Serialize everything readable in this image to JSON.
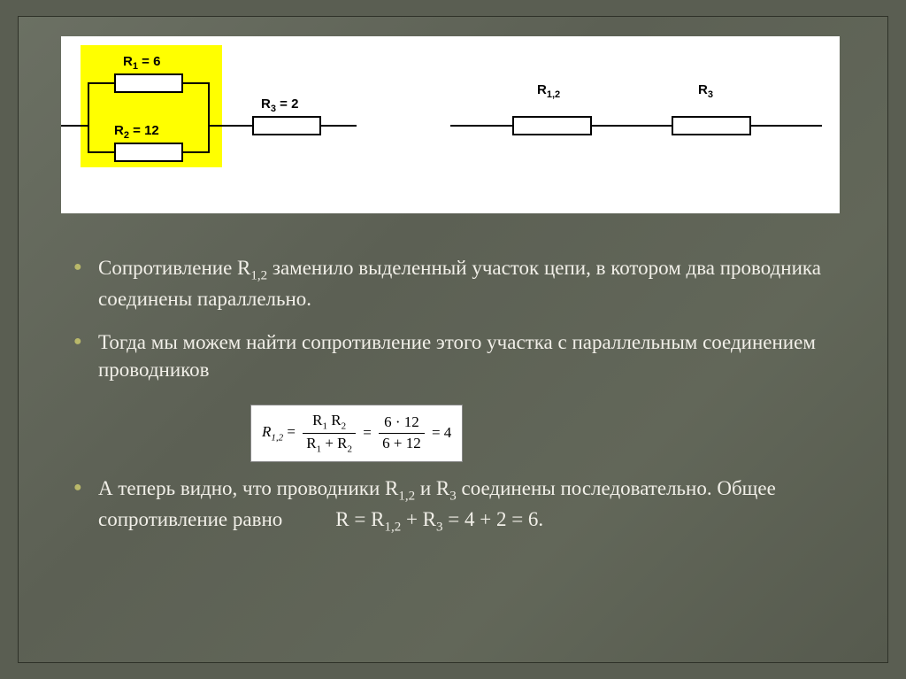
{
  "diagram": {
    "panel_bg": "#ffffff",
    "highlight_color": "#ffff00",
    "left": {
      "r1_label": "R<sub>1</sub> = 6",
      "r2_label": "R<sub>2</sub> = 12",
      "r3_label": "R<sub>3</sub> = 2"
    },
    "right": {
      "r12_label": "R<sub>1,2</sub>",
      "r3_label": "R<sub>3</sub>"
    }
  },
  "bullets": {
    "b1": "Сопротивление R<sub>1,2</sub> заменило выделенный участок цепи, в котором два проводника соединены параллельно.",
    "b2": "Тогда мы можем найти сопротивление этого участка с параллельным соединением проводников",
    "b3": "А теперь видно, что проводники R<sub>1,2</sub> и R<sub>3</sub> соединены последовательно. Общее сопротивление равно<span class=\"indent-pad\"></span>R = R<sub>1,2</sub> + R<sub>3</sub> = 4 + 2 = 6."
  },
  "formula": {
    "lhs": "R<sub>1,2</sub>",
    "frac1_num": "R<sub>1</sub> R<sub>2</sub>",
    "frac1_den": "R<sub>1</sub> + R<sub>2</sub>",
    "frac2_num": "6 · 12",
    "frac2_den": "6 + 12",
    "result": "4"
  },
  "style": {
    "slide_bg": "#5a5e52",
    "accent_bullet": "#b9b86a",
    "text_color": "#f1efe8",
    "body_fontsize": 23
  }
}
